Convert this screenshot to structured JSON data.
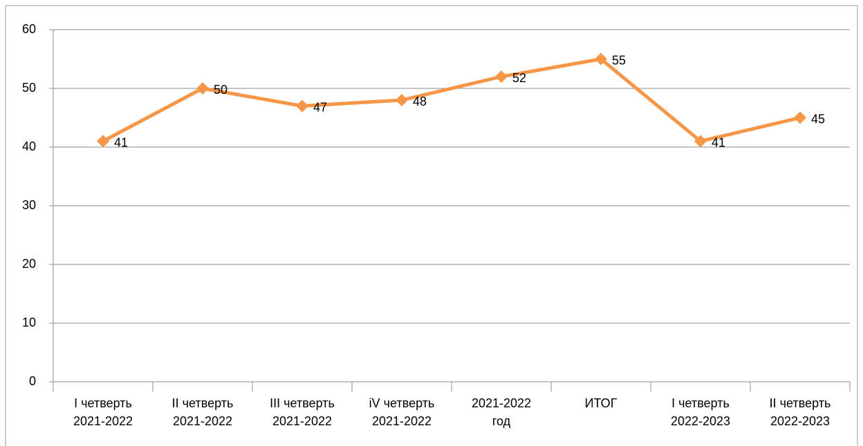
{
  "chart_data": {
    "type": "line",
    "categories": [
      "I четверть\n2021-2022",
      "II четверть\n2021-2022",
      "III четверть\n2021-2022",
      "iV четверть\n2021-2022",
      "2021-2022\nгод",
      "ИТОГ",
      "I четверть\n2022-2023",
      "II четверть\n2022-2023"
    ],
    "series": [
      {
        "color": "#f79646",
        "values": [
          41,
          50,
          47,
          48,
          52,
          55,
          41,
          45
        ]
      }
    ],
    "ylim": [
      0,
      60
    ],
    "yticks": [
      0,
      10,
      20,
      30,
      40,
      50,
      60
    ],
    "grid": true
  }
}
